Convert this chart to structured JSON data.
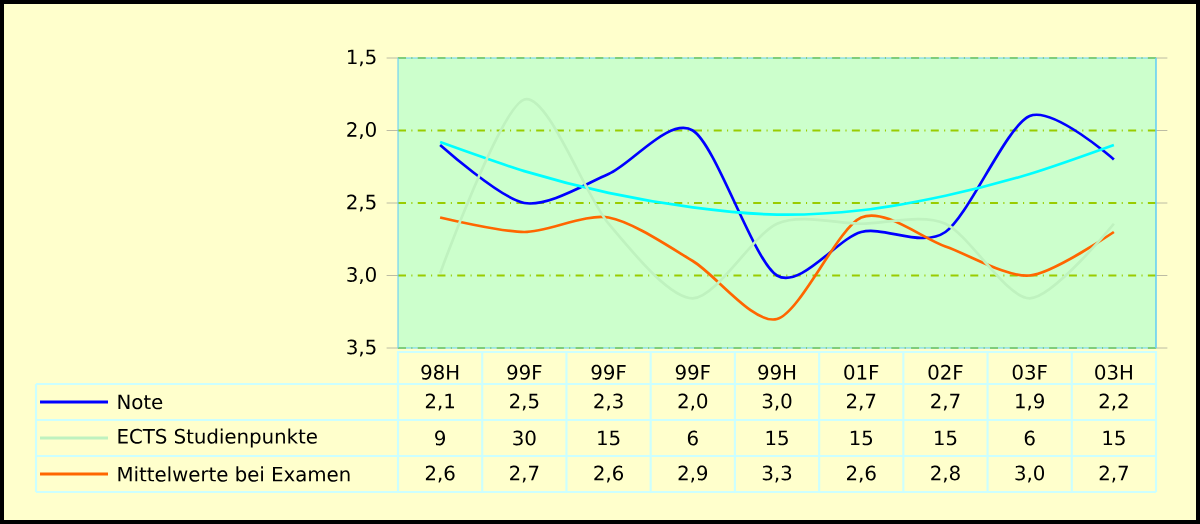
{
  "chart_data": {
    "type": "line",
    "categories": [
      "98H",
      "99F",
      "99F",
      "99F",
      "99H",
      "01F",
      "02F",
      "03F",
      "03H"
    ],
    "series": [
      {
        "name": "Note",
        "color": "#0000ff",
        "values": [
          2.1,
          2.5,
          2.3,
          2.0,
          3.0,
          2.7,
          2.7,
          1.9,
          2.2
        ],
        "value_labels": [
          "2,1",
          "2,5",
          "2,3",
          "2,0",
          "3,0",
          "2,7",
          "2,7",
          "1,9",
          "2,2"
        ]
      },
      {
        "name": "ECTS Studienpunkte",
        "color": "#bff2bf",
        "axis": "y2",
        "values": [
          9,
          30,
          15,
          6,
          15,
          15,
          15,
          6,
          15
        ],
        "value_labels": [
          "9",
          "30",
          "15",
          "6",
          "15",
          "15",
          "15",
          "6",
          "15"
        ]
      },
      {
        "name": "Mittelwerte bei Examen",
        "color": "#ff6600",
        "values": [
          2.6,
          2.7,
          2.6,
          2.9,
          3.3,
          2.6,
          2.8,
          3.0,
          2.7
        ],
        "value_labels": [
          "2,6",
          "2,7",
          "2,6",
          "2,9",
          "3,3",
          "2,6",
          "2,8",
          "3,0",
          "2,7"
        ]
      },
      {
        "color": "#00ffff",
        "values": [
          2.08,
          2.28,
          2.43,
          2.53,
          2.58,
          2.55,
          2.45,
          2.3,
          2.1
        ]
      }
    ],
    "ylim": [
      3.5,
      1.5
    ],
    "yticks": [
      {
        "value": 1.5,
        "label": "1,5"
      },
      {
        "value": 2.0,
        "label": "2,0"
      },
      {
        "value": 2.5,
        "label": "2,5"
      },
      {
        "value": 3.0,
        "label": "3,0"
      },
      {
        "value": 3.5,
        "label": "3,5"
      }
    ],
    "y2lim": [
      0,
      35
    ],
    "grid": "y",
    "legend": "bottom left"
  }
}
